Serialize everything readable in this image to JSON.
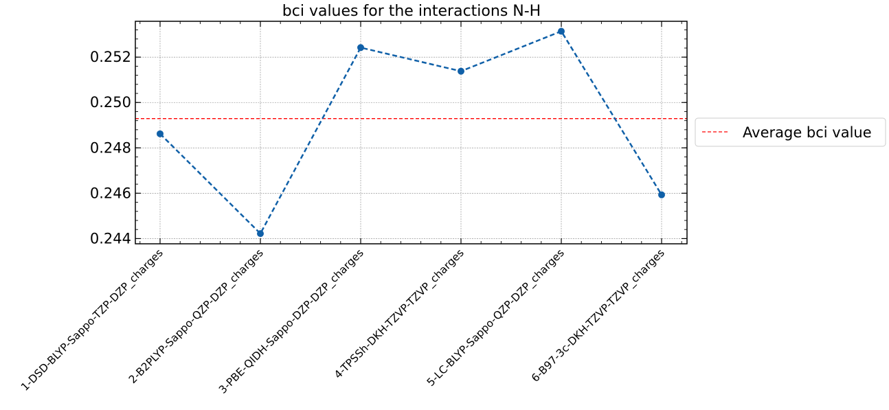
{
  "chart_data": {
    "type": "line",
    "title": "bci values for the interactions N-H",
    "xlabel": "",
    "ylabel": "",
    "categories": [
      "1-DSD-BLYP-Sappo-TZP-DZP_charges",
      "2-B2PLYP-Sappo-QZP-DZP_charges",
      "3-PBE-QIDH-Sappo-DZP-DZP_charges",
      "4-TPSSh-DKH-TZVP-TZVP_charges",
      "5-LC-BLYP-Sappo-QZP-DZP_charges",
      "6-B97-3c-DKH-TZVP-TZVP_charges"
    ],
    "series": [
      {
        "values": [
          0.24862,
          0.24422,
          0.25242,
          0.25138,
          0.25314,
          0.24593
        ]
      }
    ],
    "reference_line": {
      "label": "Average bci value",
      "value": 0.24929
    },
    "y_ticks": [
      "0.244",
      "0.246",
      "0.248",
      "0.250",
      "0.252"
    ],
    "ylim": [
      0.24377,
      0.25358
    ],
    "grid": true,
    "legend_position": "center-right-outside",
    "colors": {
      "series": "#1060a8",
      "reference": "#ff0000",
      "grid": "#808080"
    }
  }
}
